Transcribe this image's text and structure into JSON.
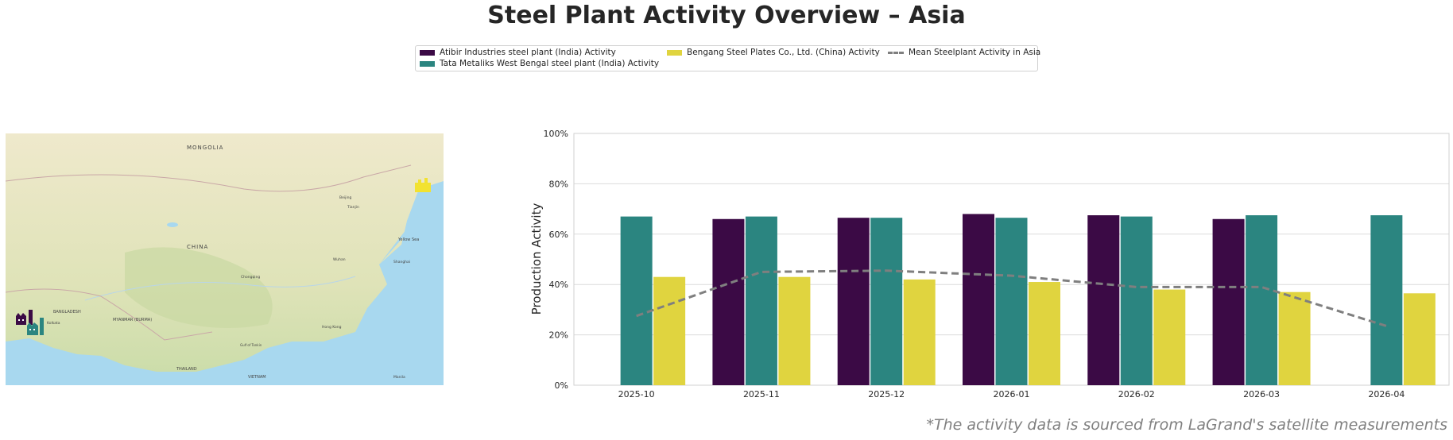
{
  "title": "Steel Plant Activity Overview – Asia",
  "footnote": "*The activity data is sourced from LaGrand's satellite measurements",
  "map": {
    "labels": [
      "MONGOLIA",
      "CHINA",
      "MYANMAR (BURMA)",
      "THAILAND",
      "VIETNAM",
      "BANGLADESH",
      "Yellow Sea",
      "Gulf of Tonkin",
      "Shanghai",
      "Beijing",
      "Tianjin",
      "Hong Kong",
      "Kolkata",
      "Chongqing",
      "Wuhan",
      "Manila"
    ],
    "colors": {
      "land": "#ede8cf",
      "water": "#a8d8ef",
      "marker_india": "#3b0a45",
      "marker_india2": "#2b8580",
      "marker_china": "#f2e230"
    },
    "markers": [
      "factory-icon",
      "factory-icon",
      "factory-icon"
    ]
  },
  "chart_data": {
    "type": "bar",
    "categories": [
      "2025-10",
      "2025-11",
      "2025-12",
      "2026-01",
      "2026-02",
      "2026-03",
      "2026-04"
    ],
    "series": [
      {
        "name": "Atibir Industries steel plant (India) Activity",
        "color": "#3b0a45",
        "values": [
          null,
          66,
          66.5,
          68,
          67.5,
          66,
          null
        ]
      },
      {
        "name": "Tata Metaliks West Bengal steel plant (India) Activity",
        "color": "#2b8580",
        "values": [
          67,
          67,
          66.5,
          66.5,
          67,
          67.5,
          67.5
        ]
      },
      {
        "name": "Bengang Steel Plates Co., Ltd. (China) Activity",
        "color": "#e0d43f",
        "values": [
          43,
          43,
          42,
          41,
          38,
          37,
          36.5
        ]
      }
    ],
    "mean_line": {
      "name": "Mean Steelplant Activity in Asia",
      "color": "#7f7f7f",
      "values": [
        27.5,
        45,
        45.5,
        43.5,
        39,
        39,
        23.5
      ]
    },
    "ylabel": "Production Activity",
    "xlabel": "",
    "ylim": [
      0,
      100
    ],
    "yticks": [
      "0%",
      "20%",
      "40%",
      "60%",
      "80%",
      "100%"
    ],
    "grid": true,
    "legend_position": "top-center"
  }
}
